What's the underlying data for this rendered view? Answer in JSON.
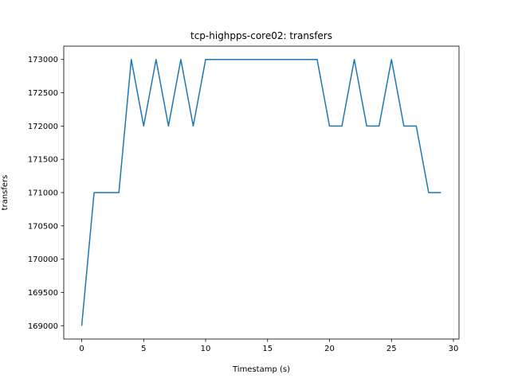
{
  "chart_data": {
    "type": "line",
    "title": "tcp-highpps-core02: transfers",
    "xlabel": "Timestamp (s)",
    "ylabel": "transfers",
    "xlim": [
      -1.45,
      30.45
    ],
    "ylim": [
      168800,
      173200
    ],
    "xticks": [
      0,
      5,
      10,
      15,
      20,
      25,
      30
    ],
    "yticks": [
      169000,
      169500,
      170000,
      170500,
      171000,
      171500,
      172000,
      172500,
      173000
    ],
    "grid": false,
    "legend": "none",
    "series": [
      {
        "color": "#1f77b4",
        "x": [
          0,
          1,
          2,
          3,
          4,
          5,
          6,
          7,
          8,
          9,
          10,
          11,
          12,
          13,
          14,
          15,
          16,
          17,
          18,
          19,
          20,
          21,
          22,
          23,
          24,
          25,
          26,
          27,
          28,
          29
        ],
        "y": [
          169000,
          171000,
          171000,
          171000,
          173000,
          172000,
          173000,
          172000,
          173000,
          172000,
          173000,
          173000,
          173000,
          173000,
          173000,
          173000,
          173000,
          173000,
          173000,
          173000,
          172000,
          172000,
          173000,
          172000,
          172000,
          173000,
          172000,
          172000,
          171000,
          171000
        ]
      }
    ]
  }
}
